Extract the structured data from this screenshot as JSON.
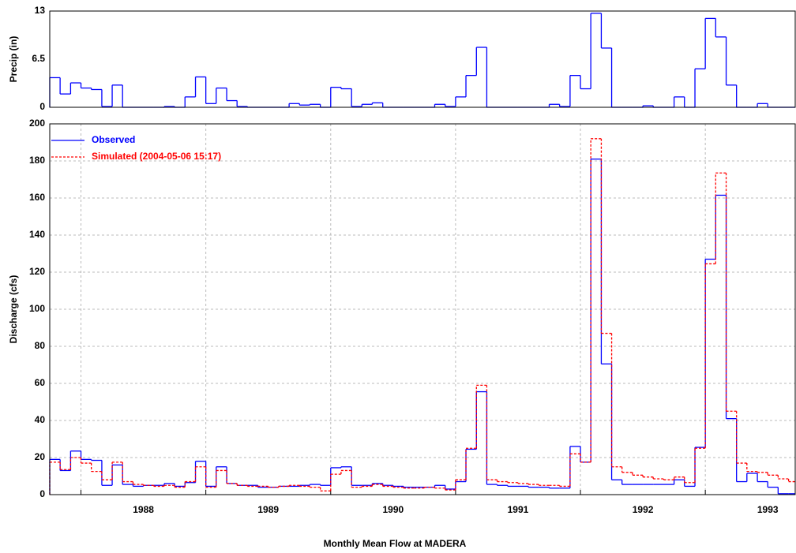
{
  "chart_data": [
    {
      "type": "step",
      "ylabel": "Precip (in)",
      "color": "#0000ff",
      "grid": false,
      "xlim": [
        1987.75,
        1993.72
      ],
      "ylim": [
        0,
        13
      ],
      "yticks": [
        0,
        6.5,
        13
      ],
      "x": [
        1987.75,
        1987.833,
        1987.917,
        1988,
        1988.083,
        1988.167,
        1988.25,
        1988.333,
        1988.417,
        1988.5,
        1988.583,
        1988.667,
        1988.75,
        1988.833,
        1988.917,
        1989,
        1989.083,
        1989.167,
        1989.25,
        1989.333,
        1989.417,
        1989.5,
        1989.583,
        1989.667,
        1989.75,
        1989.833,
        1989.917,
        1990,
        1990.083,
        1990.167,
        1990.25,
        1990.333,
        1990.417,
        1990.5,
        1990.583,
        1990.667,
        1990.75,
        1990.833,
        1990.917,
        1991,
        1991.083,
        1991.167,
        1991.25,
        1991.333,
        1991.417,
        1991.5,
        1991.583,
        1991.667,
        1991.75,
        1991.833,
        1991.917,
        1992,
        1992.083,
        1992.167,
        1992.25,
        1992.333,
        1992.417,
        1992.5,
        1992.583,
        1992.667,
        1992.75,
        1992.833,
        1992.917,
        1993,
        1993.083,
        1993.167,
        1993.25,
        1993.333,
        1993.417,
        1993.5,
        1993.583,
        1993.667
      ],
      "values": [
        4,
        1.8,
        3.3,
        2.6,
        2.4,
        0.1,
        3,
        0,
        0,
        0,
        0,
        0.1,
        0,
        1.4,
        4.1,
        0.5,
        2.6,
        0.9,
        0.1,
        0,
        0,
        0,
        0,
        0.5,
        0.3,
        0.4,
        0,
        2.7,
        2.5,
        0.1,
        0.4,
        0.6,
        0,
        0,
        0,
        0,
        0,
        0.4,
        0.1,
        1.4,
        4.3,
        8.1,
        0,
        0,
        0,
        0,
        0,
        0,
        0.4,
        0.1,
        4.3,
        2.5,
        12.7,
        8,
        0,
        0,
        0,
        0.2,
        0,
        0,
        1.4,
        0,
        5.2,
        12,
        9.5,
        3,
        0,
        0,
        0.5,
        0,
        0,
        0
      ]
    },
    {
      "type": "step",
      "ylabel": "Discharge (cfs)",
      "xlabel": "Monthly Mean Flow at MADERA",
      "grid": true,
      "legend": "upper left",
      "xlim": [
        1987.75,
        1993.72
      ],
      "ylim": [
        0,
        200
      ],
      "yticks": [
        0,
        20,
        40,
        60,
        80,
        100,
        120,
        140,
        160,
        180,
        200
      ],
      "xgrid": [
        1988,
        1989,
        1990,
        1991,
        1992,
        1993
      ],
      "xticks": [
        {
          "value": 1988.5,
          "label": "1988"
        },
        {
          "value": 1989.5,
          "label": "1989"
        },
        {
          "value": 1990.5,
          "label": "1990"
        },
        {
          "value": 1991.5,
          "label": "1991"
        },
        {
          "value": 1992.5,
          "label": "1992"
        },
        {
          "value": 1993.5,
          "label": "1993"
        }
      ],
      "x": [
        1987.75,
        1987.833,
        1987.917,
        1988,
        1988.083,
        1988.167,
        1988.25,
        1988.333,
        1988.417,
        1988.5,
        1988.583,
        1988.667,
        1988.75,
        1988.833,
        1988.917,
        1989,
        1989.083,
        1989.167,
        1989.25,
        1989.333,
        1989.417,
        1989.5,
        1989.583,
        1989.667,
        1989.75,
        1989.833,
        1989.917,
        1990,
        1990.083,
        1990.167,
        1990.25,
        1990.333,
        1990.417,
        1990.5,
        1990.583,
        1990.667,
        1990.75,
        1990.833,
        1990.917,
        1991,
        1991.083,
        1991.167,
        1991.25,
        1991.333,
        1991.417,
        1991.5,
        1991.583,
        1991.667,
        1991.75,
        1991.833,
        1991.917,
        1992,
        1992.083,
        1992.167,
        1992.25,
        1992.333,
        1992.417,
        1992.5,
        1992.583,
        1992.667,
        1992.75,
        1992.833,
        1992.917,
        1993,
        1993.083,
        1993.167,
        1993.25,
        1993.333,
        1993.417,
        1993.5,
        1993.583,
        1993.667
      ],
      "series": [
        {
          "name": "Observed",
          "color": "#0000ff",
          "line_style": "solid",
          "values": [
            19,
            13,
            23.5,
            19,
            18.5,
            5,
            16,
            5.5,
            4.5,
            5,
            5,
            6,
            4.5,
            6.5,
            18,
            4.5,
            15,
            6,
            5,
            5,
            4,
            4,
            4.5,
            4.5,
            5,
            5.5,
            5,
            14.5,
            15,
            5,
            5,
            6,
            5,
            4.5,
            4,
            4,
            4,
            5,
            3,
            7,
            24.5,
            55.5,
            5.5,
            5,
            4.5,
            4.5,
            4,
            4,
            3.5,
            3.5,
            26,
            17.5,
            181,
            70.5,
            8,
            5.5,
            5.5,
            5.5,
            5.5,
            5.5,
            8,
            4.5,
            25.5,
            127,
            161.5,
            41,
            7,
            11.5,
            7,
            4,
            0.5,
            0.5
          ]
        },
        {
          "name": "Simulated (2004-05-06 15:17)",
          "color": "#ff0000",
          "line_style": "dashed",
          "values": [
            17.5,
            13.5,
            20,
            17,
            12.5,
            8,
            17.5,
            7,
            5.5,
            5,
            4.5,
            5,
            4,
            7,
            15,
            4,
            13,
            6,
            5,
            4.5,
            4.5,
            4,
            4.5,
            5,
            4.5,
            4,
            2,
            11,
            13,
            4,
            4.5,
            5.5,
            4.5,
            4,
            3.5,
            3.5,
            4,
            3.5,
            2.5,
            8,
            25,
            59,
            8,
            7,
            6.5,
            6,
            5.5,
            5,
            5,
            4.5,
            22,
            17.5,
            192,
            87,
            15,
            12,
            10.5,
            9.5,
            8.5,
            8,
            9.5,
            6.5,
            25,
            124.5,
            173.5,
            45,
            17,
            12.5,
            12,
            10.5,
            8.5,
            7
          ]
        }
      ]
    }
  ]
}
